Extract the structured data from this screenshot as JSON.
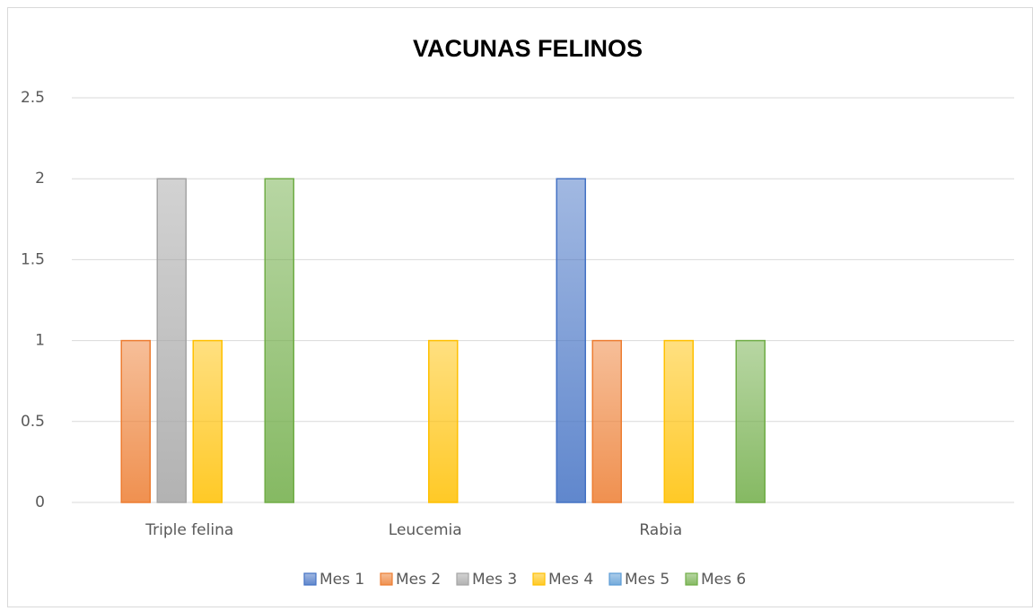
{
  "chart_data": {
    "type": "bar",
    "title": "VACUNAS  FELINOS",
    "categories": [
      "Triple felina",
      "Leucemia",
      "Rabia",
      null
    ],
    "series": [
      {
        "name": "Mes 1",
        "color": "#4472c4",
        "values": [
          0,
          0,
          2,
          null
        ]
      },
      {
        "name": "Mes 2",
        "color": "#ed7d31",
        "values": [
          1,
          0,
          1,
          null
        ]
      },
      {
        "name": "Mes 3",
        "color": "#a5a5a5",
        "values": [
          2,
          0,
          0,
          null
        ]
      },
      {
        "name": "Mes 4",
        "color": "#ffc000",
        "values": [
          1,
          1,
          1,
          null
        ]
      },
      {
        "name": "Mes 5",
        "color": "#5b9bd5",
        "values": [
          0,
          0,
          0,
          null
        ]
      },
      {
        "name": "Mes 6",
        "color": "#70ad47",
        "values": [
          2,
          0,
          1,
          null
        ]
      }
    ],
    "ylim": [
      0,
      2.5
    ],
    "yticks": [
      0,
      0.5,
      1,
      1.5,
      2,
      2.5
    ],
    "grid": true,
    "legend": "bottom"
  }
}
